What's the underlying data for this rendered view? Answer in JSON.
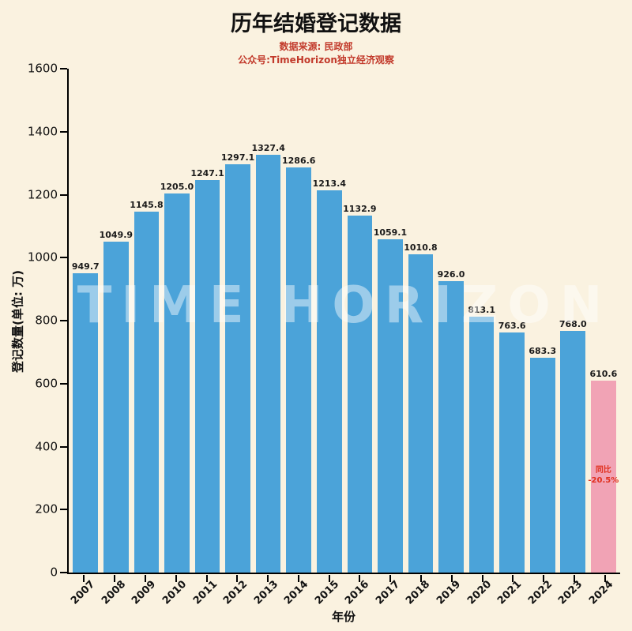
{
  "title": "历年结婚登记数据",
  "subtitle_source": "数据来源: 民政部",
  "subtitle_account": "公众号:TimeHorizon独立经济观察",
  "watermark": "TIME HORIZON",
  "axis": {
    "xlabel": "年份",
    "ylabel": "登记数量(单位: 万)"
  },
  "annotation": {
    "line1": "同比",
    "line2": "-20.5%"
  },
  "colors": {
    "background": "#FAF2E0",
    "bar": "#4BA3D9",
    "highlight_bar": "#F1A3B5",
    "annotation": "#E0301E",
    "subtitle": "#C23A2B"
  },
  "chart_data": {
    "type": "bar",
    "title": "历年结婚登记数据",
    "xlabel": "年份",
    "ylabel": "登记数量(单位: 万)",
    "categories": [
      "2007",
      "2008",
      "2009",
      "2010",
      "2011",
      "2012",
      "2013",
      "2014",
      "2015",
      "2016",
      "2017",
      "2018",
      "2019",
      "2020",
      "2021",
      "2022",
      "2023",
      "2024"
    ],
    "values": [
      949.7,
      1049.9,
      1145.8,
      1205.0,
      1247.1,
      1297.1,
      1327.4,
      1286.6,
      1213.4,
      1132.9,
      1059.1,
      1010.8,
      926.0,
      813.1,
      763.6,
      683.3,
      768.0,
      610.6
    ],
    "highlight_index": 17,
    "highlight_annotation": "同比 -20.5%",
    "ylim": [
      0,
      1600
    ],
    "yticks": [
      0,
      200,
      400,
      600,
      800,
      1000,
      1200,
      1400,
      1600
    ],
    "grid": false,
    "legend": "none"
  }
}
